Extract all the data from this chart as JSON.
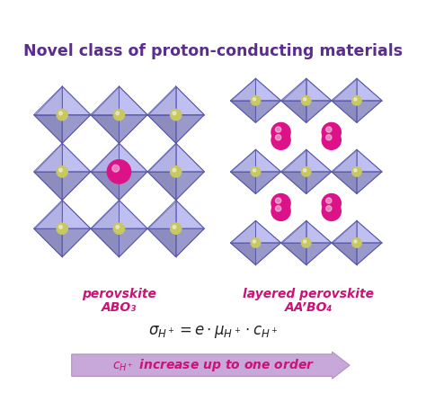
{
  "title": "Novel class of proton-conducting materials",
  "title_color": "#5B2D8E",
  "title_fontsize": 12.5,
  "bg_color": "#ffffff",
  "label_left_line1": "perovskite",
  "label_left_line2": "ABO₃",
  "label_right_line1": "layered perovskite",
  "label_right_line2": "AA’BO₄",
  "label_color": "#cc1177",
  "label_fontsize": 10,
  "formula_fontsize": 12,
  "arrow_fontsize": 10,
  "arrow_text_color": "#cc1177",
  "oct_face_light": "#9999dd",
  "oct_face_dark": "#7777bb",
  "oct_face_mid": "#8888cc",
  "oct_edge": "#5555aa",
  "ball_A_color": "#c8c860",
  "ball_B_color": "#dd1188"
}
